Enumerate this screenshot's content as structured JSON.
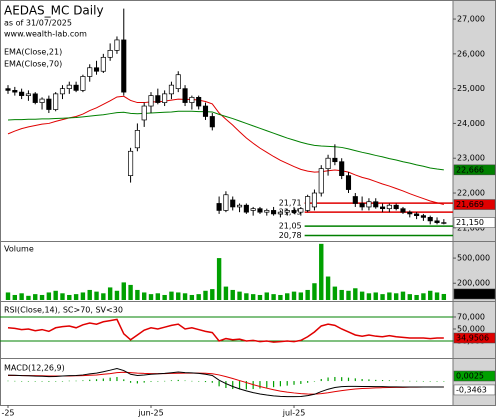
{
  "chart_data": [
    {
      "type": "candlestick",
      "title": "AEDAS_MC Daily",
      "subtitle": "as of 31/07/2025",
      "source": "www.wealth-lab.com",
      "categories": [
        "-25",
        null,
        null,
        null,
        null,
        null,
        null,
        null,
        null,
        null,
        null,
        null,
        null,
        null,
        null,
        null,
        null,
        null,
        null,
        null,
        null,
        "jun-25",
        null,
        null,
        null,
        null,
        null,
        null,
        null,
        null,
        null,
        null,
        null,
        null,
        null,
        null,
        null,
        null,
        null,
        null,
        null,
        null,
        "jul-25",
        null,
        null,
        null,
        null,
        null,
        null,
        null,
        null,
        null,
        null,
        null,
        null,
        null,
        null,
        null,
        null,
        null,
        null,
        null,
        null,
        null,
        null
      ],
      "open": [
        25.0,
        24.95,
        24.9,
        24.8,
        24.85,
        24.6,
        24.7,
        24.4,
        24.85,
        25.0,
        25.1,
        24.95,
        25.35,
        25.6,
        25.5,
        25.9,
        26.1,
        26.4,
        22.5,
        23.3,
        24.1,
        24.5,
        24.8,
        24.6,
        24.85,
        25.0,
        25.0,
        24.6,
        24.75,
        24.5,
        24.2,
        21.7,
        21.5,
        21.8,
        21.6,
        21.65,
        21.5,
        21.55,
        21.45,
        21.5,
        21.4,
        21.45,
        21.5,
        21.45,
        21.5,
        21.6,
        22.0,
        22.7,
        23.0,
        22.9,
        22.5,
        21.9,
        21.7,
        21.6,
        21.75,
        21.6,
        21.55,
        21.65,
        21.55,
        21.45,
        21.4,
        21.35,
        21.3,
        21.2,
        21.15
      ],
      "high": [
        25.1,
        25.05,
        25.0,
        24.95,
        24.9,
        24.75,
        24.8,
        24.9,
        25.1,
        25.2,
        25.2,
        25.4,
        25.7,
        25.8,
        26.0,
        26.3,
        26.5,
        27.3,
        23.3,
        24.0,
        24.6,
        24.9,
        25.0,
        24.95,
        25.2,
        25.5,
        25.1,
        24.8,
        24.8,
        24.6,
        24.3,
        21.9,
        22.05,
        21.9,
        21.7,
        21.7,
        21.6,
        21.6,
        21.55,
        21.6,
        21.5,
        21.55,
        21.6,
        21.6,
        21.95,
        22.1,
        22.8,
        23.1,
        23.4,
        23.0,
        22.6,
        22.0,
        21.9,
        21.85,
        21.85,
        21.7,
        21.7,
        21.7,
        21.6,
        21.5,
        21.45,
        21.4,
        21.35,
        21.3,
        21.25
      ],
      "low": [
        24.85,
        24.8,
        24.7,
        24.65,
        24.55,
        24.4,
        24.3,
        24.35,
        24.7,
        24.85,
        24.9,
        24.9,
        25.2,
        25.4,
        25.45,
        25.8,
        26.0,
        24.8,
        22.3,
        23.2,
        23.9,
        24.3,
        24.55,
        24.5,
        24.7,
        24.9,
        24.5,
        24.4,
        24.4,
        24.1,
        23.8,
        21.4,
        21.45,
        21.5,
        21.45,
        21.4,
        21.35,
        21.4,
        21.35,
        21.35,
        21.3,
        21.35,
        21.4,
        21.35,
        21.45,
        21.5,
        21.9,
        22.5,
        22.8,
        22.4,
        22.0,
        21.6,
        21.5,
        21.5,
        21.55,
        21.45,
        21.45,
        21.5,
        21.4,
        21.3,
        21.25,
        21.2,
        21.1,
        21.1,
        21.1
      ],
      "close": [
        24.95,
        24.9,
        24.8,
        24.85,
        24.6,
        24.7,
        24.4,
        24.85,
        25.0,
        25.1,
        24.95,
        25.35,
        25.6,
        25.5,
        25.9,
        26.1,
        26.4,
        24.9,
        23.2,
        23.8,
        24.5,
        24.8,
        24.6,
        24.85,
        25.1,
        25.4,
        24.6,
        24.75,
        24.5,
        24.2,
        23.9,
        21.5,
        21.95,
        21.6,
        21.65,
        21.45,
        21.55,
        21.45,
        21.5,
        21.4,
        21.45,
        21.5,
        21.45,
        21.55,
        21.9,
        22.0,
        22.7,
        23.0,
        22.9,
        22.5,
        22.1,
        21.7,
        21.6,
        21.75,
        21.6,
        21.55,
        21.65,
        21.55,
        21.45,
        21.4,
        21.35,
        21.3,
        21.2,
        21.15,
        21.15
      ],
      "close_label": "21,150",
      "series": [
        {
          "name": "EMA(Close,21)",
          "color": "#e00000",
          "last_label": "21,669",
          "values": [
            23.7,
            23.78,
            23.85,
            23.9,
            23.94,
            23.98,
            24.0,
            24.06,
            24.11,
            24.16,
            24.2,
            24.27,
            24.37,
            24.45,
            24.55,
            24.65,
            24.76,
            24.78,
            24.66,
            24.6,
            24.6,
            24.62,
            24.62,
            24.64,
            24.67,
            24.7,
            24.69,
            24.69,
            24.67,
            24.63,
            24.56,
            24.3,
            24.12,
            23.95,
            23.76,
            23.58,
            23.43,
            23.29,
            23.17,
            23.05,
            22.94,
            22.85,
            22.76,
            22.68,
            22.63,
            22.6,
            22.61,
            22.64,
            22.66,
            22.64,
            22.6,
            22.52,
            22.45,
            22.4,
            22.33,
            22.26,
            22.2,
            22.13,
            22.06,
            21.98,
            21.91,
            21.84,
            21.77,
            21.72,
            21.669
          ]
        },
        {
          "name": "EMA(Close,70)",
          "color": "#008000",
          "last_label": "22,666",
          "values": [
            24.1,
            24.11,
            24.11,
            24.12,
            24.12,
            24.13,
            24.13,
            24.14,
            24.15,
            24.16,
            24.17,
            24.19,
            24.21,
            24.23,
            24.25,
            24.28,
            24.31,
            24.32,
            24.29,
            24.28,
            24.29,
            24.3,
            24.31,
            24.32,
            24.33,
            24.35,
            24.35,
            24.35,
            24.34,
            24.34,
            24.33,
            24.26,
            24.2,
            24.14,
            24.07,
            24.0,
            23.93,
            23.86,
            23.79,
            23.72,
            23.65,
            23.58,
            23.52,
            23.46,
            23.41,
            23.37,
            23.35,
            23.34,
            23.33,
            23.31,
            23.27,
            23.22,
            23.17,
            23.13,
            23.08,
            23.04,
            22.99,
            22.95,
            22.9,
            22.86,
            22.81,
            22.77,
            22.72,
            22.69,
            22.666
          ]
        }
      ],
      "levels": [
        {
          "label": "21,71",
          "value": 21.71,
          "color": "#e00000"
        },
        {
          "label": "21,45",
          "value": 21.45,
          "color": "#e00000"
        },
        {
          "label": "21,05",
          "value": 21.05,
          "color": "#008000"
        },
        {
          "label": "20,78",
          "value": 20.78,
          "color": "#008000"
        }
      ],
      "ylim": [
        20.65,
        27.49
      ],
      "yticks": [
        {
          "value": 27,
          "label": "27,000"
        },
        {
          "value": 26,
          "label": "26,000"
        },
        {
          "value": 25,
          "label": "25,000"
        },
        {
          "value": 24,
          "label": "24,000"
        },
        {
          "value": 23,
          "label": "23,000"
        },
        {
          "value": 22,
          "label": "22,000"
        },
        {
          "value": 21,
          "label": "21,000"
        }
      ]
    },
    {
      "type": "bar",
      "title": "Volume",
      "color": "#00a000",
      "value_label": "71,981",
      "values": [
        90000,
        60000,
        80000,
        50000,
        70000,
        60000,
        90000,
        110000,
        80000,
        60000,
        70000,
        90000,
        120000,
        100000,
        80000,
        150000,
        110000,
        210000,
        180000,
        120000,
        90000,
        70000,
        80000,
        60000,
        100000,
        90000,
        80000,
        60000,
        70000,
        110000,
        130000,
        500000,
        160000,
        120000,
        100000,
        80000,
        70000,
        60000,
        90000,
        70000,
        60000,
        80000,
        100000,
        90000,
        120000,
        200000,
        670000,
        280000,
        160000,
        120000,
        110000,
        140000,
        100000,
        80000,
        90000,
        70000,
        90000,
        80000,
        100000,
        70000,
        60000,
        80000,
        110000,
        90000,
        71981
      ],
      "ylim": [
        0,
        680000
      ],
      "yticks": [
        {
          "value": 500000,
          "label": "500,000"
        },
        {
          "value": 200000,
          "label": "200,000"
        }
      ]
    },
    {
      "type": "line",
      "title": "RSI(Close,14), SC>70, SV<30",
      "color": "#e00000",
      "value_label": "34,9506",
      "values": [
        52,
        51,
        49,
        50,
        47,
        49,
        46,
        52,
        54,
        55,
        52,
        57,
        60,
        58,
        62,
        64,
        66,
        42,
        32,
        40,
        48,
        52,
        50,
        53,
        56,
        58,
        50,
        52,
        49,
        46,
        44,
        30,
        34,
        32,
        33,
        30,
        31,
        29,
        30,
        28,
        29,
        30,
        29,
        31,
        37,
        45,
        55,
        58,
        56,
        50,
        45,
        40,
        38,
        40,
        38,
        37,
        39,
        37,
        36,
        35,
        35,
        35,
        34,
        35,
        34.9506
      ],
      "reference_lines": [
        70,
        30
      ],
      "reference_color": "#008000",
      "ylim": [
        3.3,
        93.3
      ],
      "yticks": [
        {
          "value": 70,
          "label": "70,000"
        },
        {
          "value": 50,
          "label": "50,000"
        },
        {
          "value": 30,
          "label": "30,000"
        }
      ]
    },
    {
      "type": "macd",
      "title": "MACD(12,26,9)",
      "macd_color": "#000000",
      "signal_color": "#e00000",
      "histogram_color": "#00a000",
      "macd": [
        0.35,
        0.34,
        0.32,
        0.31,
        0.29,
        0.28,
        0.26,
        0.27,
        0.3,
        0.32,
        0.33,
        0.36,
        0.42,
        0.47,
        0.55,
        0.64,
        0.74,
        0.62,
        0.4,
        0.33,
        0.36,
        0.4,
        0.42,
        0.45,
        0.49,
        0.53,
        0.5,
        0.48,
        0.45,
        0.4,
        0.33,
        0.05,
        -0.15,
        -0.32,
        -0.46,
        -0.58,
        -0.68,
        -0.76,
        -0.82,
        -0.87,
        -0.9,
        -0.92,
        -0.92,
        -0.91,
        -0.86,
        -0.78,
        -0.62,
        -0.48,
        -0.38,
        -0.33,
        -0.31,
        -0.31,
        -0.32,
        -0.32,
        -0.33,
        -0.33,
        -0.34,
        -0.34,
        -0.35,
        -0.35,
        -0.35,
        -0.35,
        -0.35,
        -0.35,
        -0.3463
      ],
      "signal": [
        0.33,
        0.33,
        0.33,
        0.32,
        0.32,
        0.31,
        0.3,
        0.3,
        0.3,
        0.3,
        0.31,
        0.32,
        0.34,
        0.36,
        0.4,
        0.44,
        0.5,
        0.52,
        0.5,
        0.47,
        0.45,
        0.44,
        0.44,
        0.44,
        0.45,
        0.46,
        0.47,
        0.47,
        0.47,
        0.46,
        0.43,
        0.36,
        0.26,
        0.15,
        0.03,
        -0.09,
        -0.21,
        -0.32,
        -0.42,
        -0.51,
        -0.59,
        -0.65,
        -0.7,
        -0.74,
        -0.76,
        -0.77,
        -0.74,
        -0.69,
        -0.62,
        -0.56,
        -0.51,
        -0.47,
        -0.44,
        -0.42,
        -0.4,
        -0.39,
        -0.38,
        -0.37,
        -0.37,
        -0.36,
        -0.36,
        -0.35,
        -0.35,
        -0.35,
        -0.3488
      ],
      "histogram": [
        0.02,
        0.01,
        -0.01,
        -0.01,
        -0.03,
        -0.03,
        -0.04,
        -0.03,
        0,
        0.02,
        0.02,
        0.04,
        0.08,
        0.11,
        0.15,
        0.2,
        0.24,
        0.1,
        -0.1,
        -0.14,
        -0.09,
        -0.04,
        -0.02,
        0.01,
        0.04,
        0.07,
        0.03,
        0.01,
        -0.02,
        -0.06,
        -0.1,
        -0.31,
        -0.41,
        -0.47,
        -0.49,
        -0.49,
        -0.47,
        -0.44,
        -0.4,
        -0.36,
        -0.31,
        -0.27,
        -0.22,
        -0.17,
        -0.1,
        -0.01,
        0.12,
        0.21,
        0.24,
        0.23,
        0.2,
        0.16,
        0.12,
        0.1,
        0.07,
        0.06,
        0.04,
        0.03,
        0.02,
        0.01,
        0.01,
        0,
        0,
        0,
        0.0025
      ],
      "macd_label": "-0,3463",
      "histogram_label": "0,0025",
      "ylim": [
        -1.41,
        1.24
      ]
    }
  ]
}
